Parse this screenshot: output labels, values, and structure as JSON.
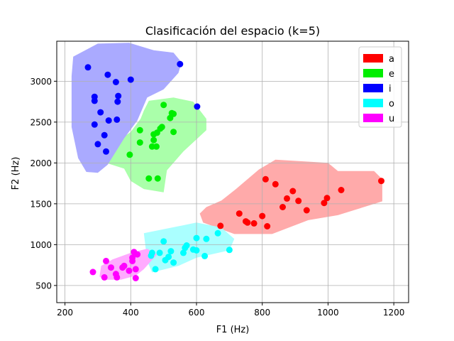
{
  "chart_data": {
    "type": "scatter",
    "title": "Clasificación del espacio (k=5)",
    "xlabel": "F1 (Hz)",
    "ylabel": "F2 (Hz)",
    "xlim": [
      175,
      1245
    ],
    "ylim": [
      290,
      3490
    ],
    "xticks": [
      200,
      400,
      600,
      800,
      1000,
      1200
    ],
    "yticks": [
      500,
      1000,
      1500,
      2000,
      2500,
      3000
    ],
    "grid": true,
    "legend_position": "top-right",
    "series": [
      {
        "name": "a",
        "point_color": "#ff0000",
        "region_color": "#ffaaaa",
        "region": [
          [
            676,
            1540
          ],
          [
            720,
            1680
          ],
          [
            790,
            1920
          ],
          [
            840,
            2040
          ],
          [
            1000,
            2000
          ],
          [
            1030,
            1900
          ],
          [
            1140,
            1900
          ],
          [
            1165,
            1800
          ],
          [
            1165,
            1530
          ],
          [
            1030,
            1360
          ],
          [
            940,
            1300
          ],
          [
            830,
            1130
          ],
          [
            715,
            1130
          ],
          [
            620,
            1270
          ],
          [
            610,
            1380
          ],
          [
            630,
            1460
          ]
        ],
        "points": [
          [
            1162,
            1780
          ],
          [
            1040,
            1668
          ],
          [
            997,
            1570
          ],
          [
            988,
            1510
          ],
          [
            935,
            1420
          ],
          [
            910,
            1535
          ],
          [
            893,
            1655
          ],
          [
            875,
            1565
          ],
          [
            862,
            1460
          ],
          [
            840,
            1740
          ],
          [
            810,
            1800
          ],
          [
            815,
            1225
          ],
          [
            800,
            1350
          ],
          [
            775,
            1260
          ],
          [
            755,
            1270
          ],
          [
            750,
            1285
          ],
          [
            730,
            1380
          ],
          [
            673,
            1230
          ]
        ]
      },
      {
        "name": "e",
        "point_color": "#00ee00",
        "region_color": "#aaffaa",
        "region": [
          [
            440,
            2640
          ],
          [
            455,
            2760
          ],
          [
            530,
            2800
          ],
          [
            590,
            2750
          ],
          [
            630,
            2540
          ],
          [
            630,
            2400
          ],
          [
            560,
            2140
          ],
          [
            510,
            1910
          ],
          [
            500,
            1640
          ],
          [
            440,
            1680
          ],
          [
            400,
            1780
          ],
          [
            380,
            1930
          ],
          [
            325,
            2000
          ],
          [
            330,
            2180
          ],
          [
            400,
            2380
          ],
          [
            430,
            2540
          ]
        ],
        "points": [
          [
            500,
            2710
          ],
          [
            525,
            2610
          ],
          [
            520,
            2550
          ],
          [
            530,
            2600
          ],
          [
            495,
            2440
          ],
          [
            490,
            2420
          ],
          [
            470,
            2350
          ],
          [
            480,
            2370
          ],
          [
            470,
            2280
          ],
          [
            465,
            2200
          ],
          [
            478,
            2200
          ],
          [
            530,
            2380
          ],
          [
            428,
            2400
          ],
          [
            428,
            2250
          ],
          [
            397,
            2100
          ],
          [
            455,
            1810
          ],
          [
            482,
            1810
          ]
        ]
      },
      {
        "name": "i",
        "point_color": "#0000ff",
        "region_color": "#aaaaff",
        "region": [
          [
            220,
            3060
          ],
          [
            225,
            3300
          ],
          [
            300,
            3460
          ],
          [
            395,
            3470
          ],
          [
            470,
            3380
          ],
          [
            530,
            3350
          ],
          [
            555,
            3230
          ],
          [
            545,
            3100
          ],
          [
            500,
            2900
          ],
          [
            450,
            2800
          ],
          [
            420,
            2520
          ],
          [
            380,
            2300
          ],
          [
            330,
            1980
          ],
          [
            300,
            1880
          ],
          [
            265,
            1890
          ],
          [
            240,
            2060
          ],
          [
            220,
            2440
          ]
        ],
        "points": [
          [
            270,
            3170
          ],
          [
            330,
            3080
          ],
          [
            355,
            2990
          ],
          [
            400,
            3020
          ],
          [
            550,
            3210
          ],
          [
            602,
            2690
          ],
          [
            290,
            2810
          ],
          [
            290,
            2760
          ],
          [
            308,
            2620
          ],
          [
            320,
            2340
          ],
          [
            360,
            2750
          ],
          [
            362,
            2820
          ],
          [
            358,
            2530
          ],
          [
            333,
            2520
          ],
          [
            290,
            2470
          ],
          [
            300,
            2230
          ],
          [
            325,
            2140
          ]
        ]
      },
      {
        "name": "o",
        "point_color": "#00ffff",
        "region_color": "#aaffff",
        "region": [
          [
            440,
            1140
          ],
          [
            600,
            1270
          ],
          [
            675,
            1210
          ],
          [
            715,
            1070
          ],
          [
            700,
            930
          ],
          [
            600,
            840
          ],
          [
            545,
            740
          ],
          [
            465,
            660
          ],
          [
            450,
            800
          ]
        ],
        "points": [
          [
            665,
            1140
          ],
          [
            700,
            935
          ],
          [
            630,
            1070
          ],
          [
            625,
            860
          ],
          [
            600,
            1080
          ],
          [
            600,
            930
          ],
          [
            590,
            940
          ],
          [
            570,
            990
          ],
          [
            565,
            960
          ],
          [
            560,
            900
          ],
          [
            530,
            780
          ],
          [
            522,
            920
          ],
          [
            515,
            850
          ],
          [
            505,
            810
          ],
          [
            500,
            1040
          ],
          [
            488,
            900
          ],
          [
            465,
            900
          ],
          [
            462,
            865
          ],
          [
            475,
            700
          ]
        ]
      },
      {
        "name": "u",
        "point_color": "#ff00ff",
        "region_color": "#ffaaff",
        "region": [
          [
            305,
            610
          ],
          [
            310,
            740
          ],
          [
            345,
            820
          ],
          [
            400,
            900
          ],
          [
            450,
            950
          ],
          [
            480,
            880
          ],
          [
            440,
            700
          ],
          [
            415,
            620
          ],
          [
            370,
            570
          ],
          [
            320,
            570
          ]
        ],
        "points": [
          [
            285,
            665
          ],
          [
            320,
            600
          ],
          [
            325,
            800
          ],
          [
            340,
            720
          ],
          [
            355,
            640
          ],
          [
            358,
            600
          ],
          [
            375,
            720
          ],
          [
            380,
            740
          ],
          [
            395,
            680
          ],
          [
            405,
            800
          ],
          [
            405,
            840
          ],
          [
            410,
            910
          ],
          [
            420,
            880
          ],
          [
            415,
            700
          ],
          [
            415,
            590
          ]
        ]
      }
    ]
  }
}
